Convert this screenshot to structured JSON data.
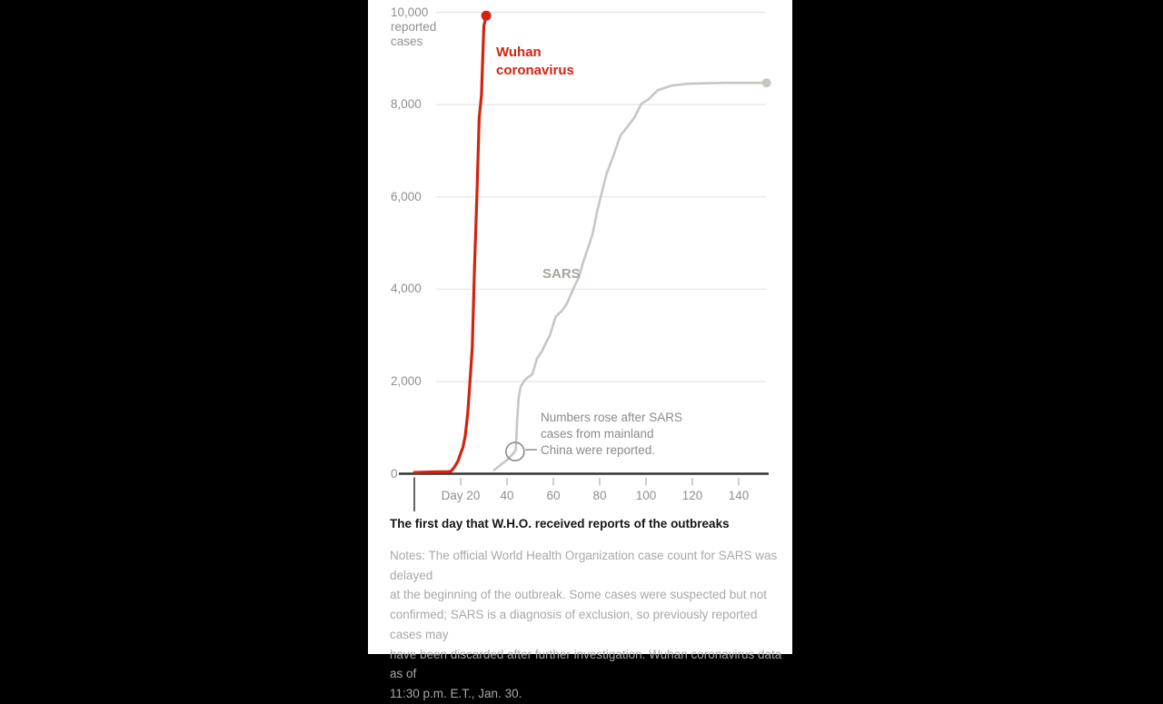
{
  "colors": {
    "background": "#000000",
    "panel": "#ffffff",
    "wuhan_red": "#d2230f",
    "sars_gray": "#c9c6c2",
    "sars_label_gray": "#a8a49e",
    "gridline": "#e4e4e4",
    "axis": "#333333",
    "tick": "#adadad",
    "day0_marker": "#666666",
    "axis_text_gray": "#8f8f8f",
    "annotation_gray": "#8a8a8a",
    "notes_gray": "#a8a8a8",
    "title_black": "#151515"
  },
  "chart_data": {
    "type": "line",
    "xlabel": "The first day that W.H.O. received reports of the outbreaks",
    "ylabel": "reported cases",
    "xlim": [
      0,
      155
    ],
    "ylim": [
      0,
      10000
    ],
    "grid": "horizontal",
    "y_axis": {
      "unit_label_lines": [
        "10,000",
        "reported",
        "cases"
      ],
      "ticks": [
        {
          "value": 0,
          "label": "0"
        },
        {
          "value": 2000,
          "label": "2,000"
        },
        {
          "value": 4000,
          "label": "4,000"
        },
        {
          "value": 6000,
          "label": "6,000"
        },
        {
          "value": 8000,
          "label": "8,000"
        },
        {
          "value": 10000,
          "label": ""
        }
      ]
    },
    "x_axis": {
      "title": "The first day that W.H.O. received reports of the outbreaks",
      "ticks": [
        {
          "value": 20,
          "label": "Day 20"
        },
        {
          "value": 40,
          "label": "40"
        },
        {
          "value": 60,
          "label": "60"
        },
        {
          "value": 80,
          "label": "80"
        },
        {
          "value": 100,
          "label": "100"
        },
        {
          "value": 120,
          "label": "120"
        },
        {
          "value": 140,
          "label": "140"
        }
      ]
    },
    "series": [
      {
        "id": "sars",
        "name": "SARS",
        "color": "#c9c6c2",
        "label_color": "#a8a49e",
        "width": 2.6,
        "dot_radius": 5,
        "points": [
          [
            34.5,
            80
          ],
          [
            37,
            180
          ],
          [
            40,
            300
          ],
          [
            43,
            450
          ],
          [
            43.8,
            520
          ],
          [
            44.3,
            1100
          ],
          [
            45,
            1650
          ],
          [
            46,
            1900
          ],
          [
            48,
            2050
          ],
          [
            51,
            2160
          ],
          [
            53,
            2500
          ],
          [
            55,
            2650
          ],
          [
            57,
            2850
          ],
          [
            58.5,
            3000
          ],
          [
            61,
            3400
          ],
          [
            64,
            3550
          ],
          [
            66,
            3700
          ],
          [
            69,
            4050
          ],
          [
            71,
            4250
          ],
          [
            73,
            4600
          ],
          [
            75,
            4900
          ],
          [
            77,
            5200
          ],
          [
            79,
            5700
          ],
          [
            81,
            6100
          ],
          [
            83,
            6500
          ],
          [
            86,
            6900
          ],
          [
            89,
            7330
          ],
          [
            92,
            7520
          ],
          [
            95,
            7720
          ],
          [
            98,
            8020
          ],
          [
            101,
            8110
          ],
          [
            105,
            8310
          ],
          [
            111,
            8410
          ],
          [
            118,
            8450
          ],
          [
            126,
            8460
          ],
          [
            134,
            8470
          ],
          [
            142,
            8470
          ],
          [
            152,
            8470
          ]
        ]
      },
      {
        "id": "wuhan",
        "name": "Wuhan coronavirus",
        "color": "#d2230f",
        "label_color": "#d2230f",
        "width": 3.2,
        "dot_radius": 5.5,
        "points": [
          [
            0,
            27
          ],
          [
            2,
            30
          ],
          [
            5,
            36
          ],
          [
            8,
            40
          ],
          [
            11,
            41
          ],
          [
            14,
            41
          ],
          [
            15,
            45
          ],
          [
            16,
            62
          ],
          [
            17,
            121
          ],
          [
            18,
            198
          ],
          [
            19,
            291
          ],
          [
            20,
            440
          ],
          [
            21,
            571
          ],
          [
            22,
            830
          ],
          [
            23,
            1287
          ],
          [
            24,
            1975
          ],
          [
            25,
            2744
          ],
          [
            26,
            4515
          ],
          [
            27,
            5974
          ],
          [
            28,
            7711
          ],
          [
            29,
            8200
          ],
          [
            30,
            9700
          ],
          [
            31,
            9925
          ]
        ]
      }
    ],
    "series_labels": {
      "wuhan_lines": [
        "Wuhan",
        "coronavirus"
      ],
      "sars": "SARS"
    },
    "annotation": {
      "lines": [
        "Numbers rose after SARS",
        "cases from mainland",
        "China were reported."
      ],
      "target_day": 43.5,
      "target_value": 480
    },
    "notes_lines": [
      "Notes: The official World Health Organization case count for SARS was delayed",
      "at the beginning of the outbreak. Some cases were suspected but not",
      "confirmed; SARS is a diagnosis of exclusion, so previously reported cases may",
      "have been discarded after further investigation. Wuhan coronavirus data as of",
      "11:30 p.m. E.T., Jan. 30."
    ]
  }
}
